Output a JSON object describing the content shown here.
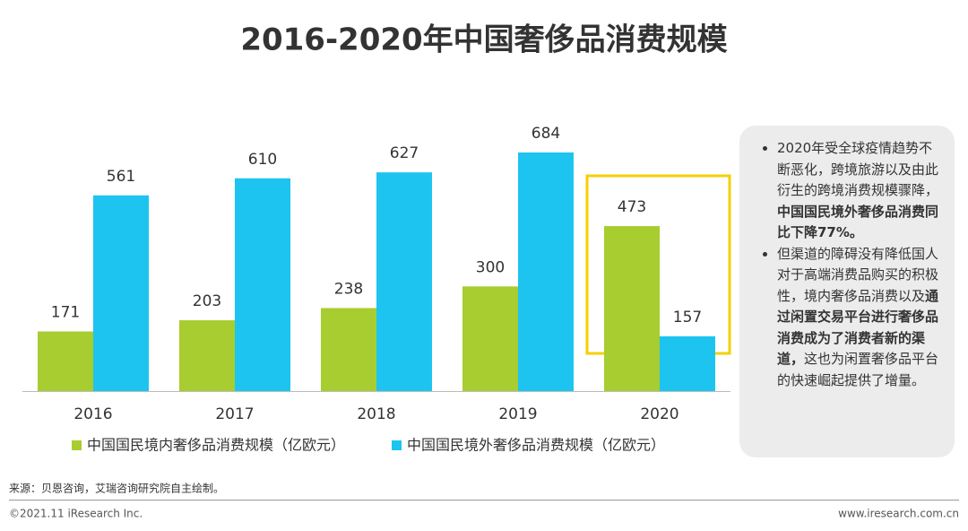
{
  "chart_data": {
    "type": "bar",
    "title": "2016-2020年中国奢侈品消费规模",
    "categories": [
      "2016",
      "2017",
      "2018",
      "2019",
      "2020"
    ],
    "series": [
      {
        "name": "中国国民境内奢侈品消费规模（亿欧元）",
        "color": "#a7cd30",
        "values": [
          171,
          203,
          238,
          300,
          473
        ]
      },
      {
        "name": "中国国民境外奢侈品消费规模（亿欧元）",
        "color": "#1ec4f0",
        "values": [
          561,
          610,
          627,
          684,
          157
        ]
      }
    ]
  },
  "notes": {
    "bullets": [
      [
        {
          "text": "2020年受全球疫情趋势不断恶化，跨境旅游以及由此衍生的跨境消费规模骤降，",
          "bold": false
        },
        {
          "text": "中国国民境外奢侈品消费同比下降77%。",
          "bold": true
        }
      ],
      [
        {
          "text": "但渠道的障碍没有降低国人对于高端消费品购买的积极性，境内奢侈品消费以及",
          "bold": false
        },
        {
          "text": "通过闲置交易平台进行奢侈品消费成为了消费者新的渠道，",
          "bold": true
        },
        {
          "text": "这也为闲置奢侈品平台的快速崛起提供了增量。",
          "bold": false
        }
      ]
    ]
  },
  "source": "来源：贝恩咨询，艾瑞咨询研究院自主绘制。",
  "footer": {
    "left": "©2021.11 iResearch Inc.",
    "right": "www.iresearch.com.cn"
  }
}
